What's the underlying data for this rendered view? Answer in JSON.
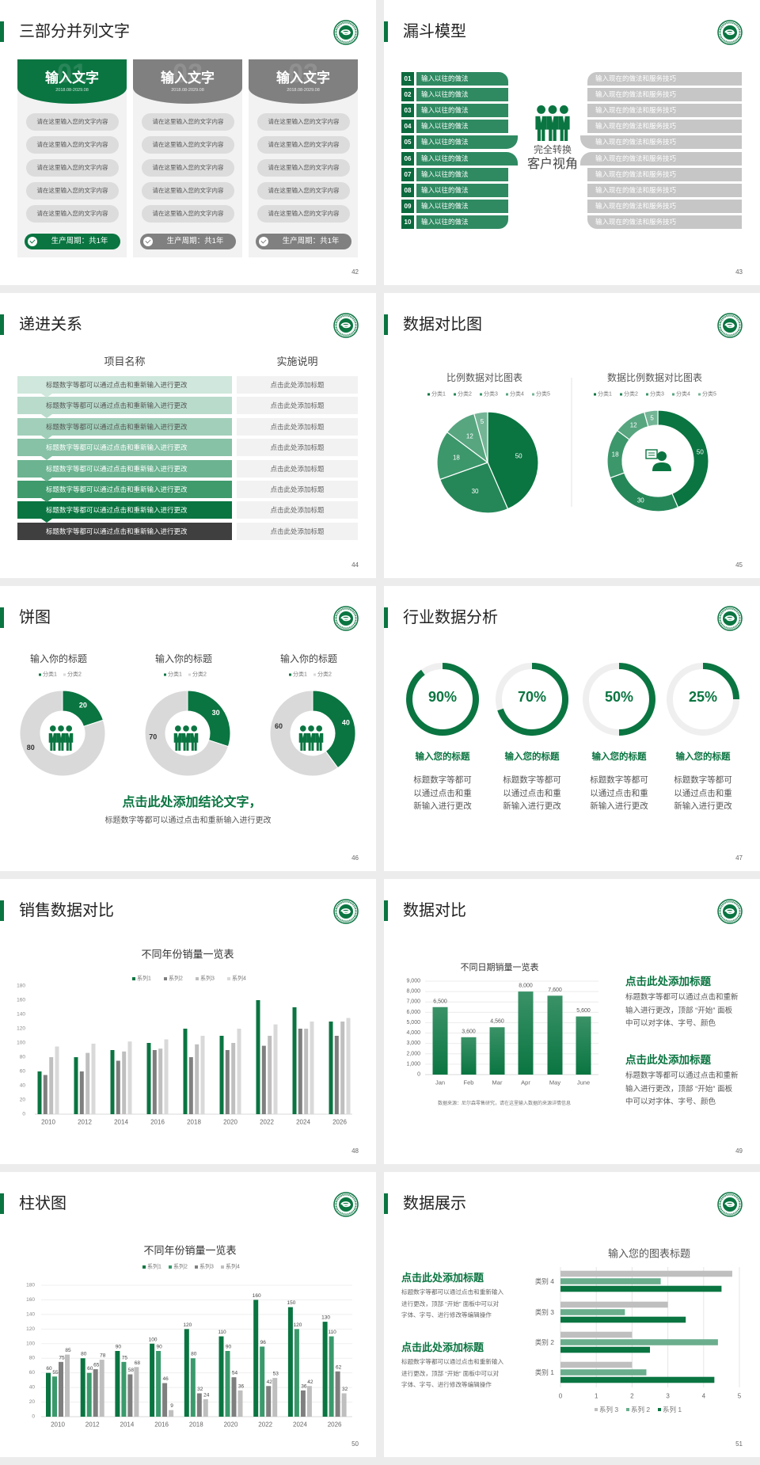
{
  "colors": {
    "accent": "#0a7541",
    "accent_mid": "#2f8a62",
    "accent_light": "#6aae8d",
    "gray_dark": "#808080",
    "gray_mid": "#bfbfbf",
    "gray_light": "#d9d9d9",
    "card_bg": "#f2f2f2"
  },
  "icons": {
    "logo": "school-emblem-logo",
    "check": "check-circle-icon",
    "people": "people-group-icon",
    "support": "customer-service-icon"
  },
  "slides": [
    {
      "title": "三部分并列文字",
      "page": "42",
      "columns": [
        {
          "number": "01",
          "heading": "输入文字",
          "date": "2018.08-2029.08",
          "active": true,
          "items": [
            "请在这里输入您的文字内容",
            "请在这里输入您的文字内容",
            "请在这里输入您的文字内容",
            "请在这里输入您的文字内容",
            "请在这里输入您的文字内容"
          ],
          "footer": "生产周期：共1年"
        },
        {
          "number": "02",
          "heading": "输入文字",
          "date": "2018.08-2029.08",
          "active": false,
          "items": [
            "请在这里输入您的文字内容",
            "请在这里输入您的文字内容",
            "请在这里输入您的文字内容",
            "请在这里输入您的文字内容",
            "请在这里输入您的文字内容"
          ],
          "footer": "生产周期：共1年"
        },
        {
          "number": "03",
          "heading": "输入文字",
          "date": "2018.08-2029.08",
          "active": false,
          "items": [
            "请在这里输入您的文字内容",
            "请在这里输入您的文字内容",
            "请在这里输入您的文字内容",
            "请在这里输入您的文字内容",
            "请在这里输入您的文字内容"
          ],
          "footer": "生产周期：共1年"
        }
      ]
    },
    {
      "title": "漏斗模型",
      "page": "43",
      "left_items": [
        {
          "number": "01",
          "label": "输入以往的做法"
        },
        {
          "number": "02",
          "label": "输入以往的做法"
        },
        {
          "number": "03",
          "label": "输入以往的做法"
        },
        {
          "number": "04",
          "label": "输入以往的做法"
        },
        {
          "number": "05",
          "label": "输入以往的做法"
        },
        {
          "number": "06",
          "label": "输入以往的做法"
        },
        {
          "number": "07",
          "label": "输入以往的做法"
        },
        {
          "number": "08",
          "label": "输入以往的做法"
        },
        {
          "number": "09",
          "label": "输入以往的做法"
        },
        {
          "number": "10",
          "label": "输入以往的做法"
        }
      ],
      "right_items": [
        "输入现在的做法和服务技巧",
        "输入现在的做法和服务技巧",
        "输入现在的做法和服务技巧",
        "输入现在的做法和服务技巧",
        "输入现在的做法和服务技巧",
        "输入现在的做法和服务技巧",
        "输入现在的做法和服务技巧",
        "输入现在的做法和服务技巧",
        "输入现在的做法和服务技巧",
        "输入现在的做法和服务技巧"
      ],
      "center_line1": "完全转换",
      "center_line2": "客户视角"
    },
    {
      "title": "递进关系",
      "page": "44",
      "header_left": "项目名称",
      "header_right": "实施说明",
      "rows": [
        {
          "item": "标题数字等都可以通过点击和重新输入进行更改",
          "note": "点击此处添加标题"
        },
        {
          "item": "标题数字等都可以通过点击和重新输入进行更改",
          "note": "点击此处添加标题"
        },
        {
          "item": "标题数字等都可以通过点击和重新输入进行更改",
          "note": "点击此处添加标题"
        },
        {
          "item": "标题数字等都可以通过点击和重新输入进行更改",
          "note": "点击此处添加标题"
        },
        {
          "item": "标题数字等都可以通过点击和重新输入进行更改",
          "note": "点击此处添加标题"
        },
        {
          "item": "标题数字等都可以通过点击和重新输入进行更改",
          "note": "点击此处添加标题"
        },
        {
          "item": "标题数字等都可以通过点击和重新输入进行更改",
          "note": "点击此处添加标题"
        },
        {
          "item": "标题数字等都可以通过点击和重新输入进行更改",
          "note": "点击此处添加标题"
        }
      ]
    },
    {
      "title": "数据对比图",
      "page": "45"
    },
    {
      "title": "饼图",
      "page": "46",
      "conclusion": "点击此处添加结论文字，",
      "subtitle": "标题数字等都可以通过点击和重新输入进行更改"
    },
    {
      "title": "行业数据分析",
      "page": "47",
      "items": [
        {
          "percent": 90,
          "label": "90%",
          "title": "输入您的标题",
          "lines": [
            "标题数字等都可",
            "以通过点击和重",
            "新输入进行更改"
          ]
        },
        {
          "percent": 70,
          "label": "70%",
          "title": "输入您的标题",
          "lines": [
            "标题数字等都可",
            "以通过点击和重",
            "新输入进行更改"
          ]
        },
        {
          "percent": 50,
          "label": "50%",
          "title": "输入您的标题",
          "lines": [
            "标题数字等都可",
            "以通过点击和重",
            "新输入进行更改"
          ]
        },
        {
          "percent": 25,
          "label": "25%",
          "title": "输入您的标题",
          "lines": [
            "标题数字等都可",
            "以通过点击和重",
            "新输入进行更改"
          ]
        }
      ]
    },
    {
      "title": "销售数据对比",
      "page": "48"
    },
    {
      "title": "数据对比",
      "page": "49",
      "blocks": [
        {
          "heading": "点击此处添加标题",
          "lines": [
            "标题数字等都可以通过点击和重新",
            "输入进行更改，顶部 “开始” 面板",
            "中可以对字体、字号、颜色"
          ]
        },
        {
          "heading": "点击此处添加标题",
          "lines": [
            "标题数字等都可以通过点击和重新",
            "输入进行更改，顶部 “开始” 面板",
            "中可以对字体、字号、颜色"
          ]
        }
      ]
    },
    {
      "title": "柱状图",
      "page": "50"
    },
    {
      "title": "数据展示",
      "page": "51",
      "blocks": [
        {
          "heading": "点击此处添加标题",
          "lines": [
            "标题数字等都可以通过点击和重新输入",
            "进行更改，顶部 “开始” 面板中可以对",
            "字体、字号、进行修改等编辑操作"
          ]
        },
        {
          "heading": "点击此处添加标题",
          "lines": [
            "标题数字等都可以通过点击和重新输入",
            "进行更改，顶部 “开始” 面板中可以对",
            "字体、字号、进行修改等编辑操作"
          ]
        }
      ]
    }
  ],
  "chart_data": [
    {
      "type": "pie",
      "title": "比例数据对比图表",
      "categories": [
        "分类1",
        "分类2",
        "分类3",
        "分类4",
        "分类5"
      ],
      "values": [
        50,
        30,
        18,
        12,
        5
      ],
      "legend": "top",
      "colors": [
        "#0a7541",
        "#258758",
        "#3c976b",
        "#57a680",
        "#74b596"
      ]
    },
    {
      "type": "pie",
      "variant": "donut",
      "title": "数据比例数据对比图表",
      "categories": [
        "分类1",
        "分类2",
        "分类3",
        "分类4",
        "分类5"
      ],
      "values": [
        50,
        30,
        18,
        12,
        5
      ],
      "legend": "top",
      "colors": [
        "#0a7541",
        "#258758",
        "#3c976b",
        "#57a680",
        "#74b596"
      ]
    },
    {
      "type": "pie",
      "variant": "donut",
      "title": "输入你的标题",
      "categories": [
        "分类1",
        "分类2"
      ],
      "values": [
        20,
        80
      ],
      "legend": "top",
      "colors": [
        "#0a7541",
        "#d9d9d9"
      ]
    },
    {
      "type": "pie",
      "variant": "donut",
      "title": "输入你的标题",
      "categories": [
        "分类1",
        "分类2"
      ],
      "values": [
        30,
        70
      ],
      "legend": "top",
      "colors": [
        "#0a7541",
        "#d9d9d9"
      ]
    },
    {
      "type": "pie",
      "variant": "donut",
      "title": "输入你的标题",
      "categories": [
        "分类1",
        "分类2"
      ],
      "values": [
        40,
        60
      ],
      "legend": "top",
      "colors": [
        "#0a7541",
        "#d9d9d9"
      ]
    },
    {
      "type": "bar",
      "title": "不同年份销量一览表",
      "categories": [
        "2010",
        "2012",
        "2014",
        "2016",
        "2018",
        "2020",
        "2022",
        "2024",
        "2026"
      ],
      "series": [
        {
          "name": "系列1",
          "values": [
            60,
            80,
            90,
            100,
            120,
            110,
            160,
            150,
            130
          ],
          "color": "#0a7541"
        },
        {
          "name": "系列2",
          "values": [
            55,
            60,
            75,
            90,
            80,
            90,
            96,
            120,
            110
          ],
          "color": "#7f7f7f"
        },
        {
          "name": "系列3",
          "values": [
            80,
            86,
            88,
            92,
            98,
            100,
            110,
            120,
            130
          ],
          "color": "#bfbfbf"
        },
        {
          "name": "系列4",
          "values": [
            95,
            99,
            102,
            105,
            110,
            120,
            126,
            130,
            135
          ],
          "color": "#d9d9d9"
        }
      ],
      "ylim": [
        0,
        180
      ],
      "yticks": [
        0,
        20,
        40,
        60,
        80,
        100,
        120,
        140,
        160,
        180
      ],
      "grid": false,
      "legend": "top"
    },
    {
      "type": "bar",
      "title": "不同日期销量一览表",
      "categories": [
        "Jan",
        "Feb",
        "Mar",
        "Apr",
        "May",
        "June"
      ],
      "values": [
        6500,
        3600,
        4560,
        8000,
        7600,
        5600
      ],
      "data_labels": [
        "6,500",
        "3,600",
        "4,560",
        "8,000",
        "7,600",
        "5,600"
      ],
      "ylim": [
        0,
        9000
      ],
      "yticks": [
        "0",
        "1,000",
        "2,000",
        "3,000",
        "4,000",
        "5,000",
        "6,000",
        "7,000",
        "8,000",
        "9,000"
      ],
      "grid": true,
      "note": "数据来源：尼尔森零售研究，请在这里输入数据的来源详情信息"
    },
    {
      "type": "bar",
      "title": "不同年份销量一览表",
      "categories": [
        "2010",
        "2012",
        "2014",
        "2016",
        "2018",
        "2020",
        "2022",
        "2024",
        "2026"
      ],
      "series": [
        {
          "name": "系列1",
          "values": [
            60,
            80,
            90,
            100,
            120,
            110,
            160,
            150,
            130
          ],
          "color": "#0a7541"
        },
        {
          "name": "系列2",
          "values": [
            55,
            60,
            75,
            90,
            80,
            90,
            96,
            120,
            110
          ],
          "color": "#3a9a6c"
        },
        {
          "name": "系列3",
          "values": [
            75,
            65,
            58,
            46,
            32,
            54,
            42,
            36,
            62
          ],
          "color": "#7f7f7f"
        },
        {
          "name": "系列4",
          "values": [
            85,
            78,
            68,
            9,
            24,
            36,
            53,
            42,
            32
          ],
          "color": "#bfbfbf"
        }
      ],
      "ylim": [
        0,
        180
      ],
      "yticks": [
        0,
        20,
        40,
        60,
        80,
        100,
        120,
        140,
        160,
        180
      ],
      "grid": true,
      "data_labels": true,
      "legend": "top"
    },
    {
      "type": "bar",
      "orientation": "horizontal",
      "title": "输入您的图表标题",
      "categories": [
        "类别 1",
        "类别 2",
        "类别 3",
        "类别 4"
      ],
      "series": [
        {
          "name": "系列 1",
          "values": [
            4.3,
            2.5,
            3.5,
            4.5
          ],
          "color": "#0a7541"
        },
        {
          "name": "系列 2",
          "values": [
            2.4,
            4.4,
            1.8,
            2.8
          ],
          "color": "#6aae8d"
        },
        {
          "name": "系列 3",
          "values": [
            2.0,
            2.0,
            3.0,
            4.8
          ],
          "color": "#bfbfbf"
        }
      ],
      "legend_order": [
        "系列 3",
        "系列 2",
        "系列 1"
      ],
      "xlim": [
        0,
        5
      ],
      "xticks": [
        0,
        1,
        2,
        3,
        4,
        5
      ],
      "grid": true,
      "legend": "bottom"
    }
  ]
}
